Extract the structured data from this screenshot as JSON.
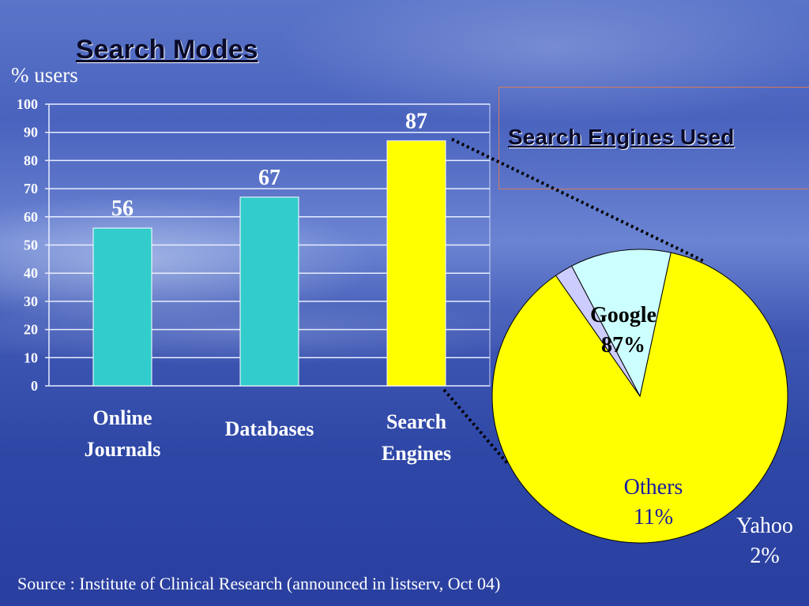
{
  "slide": {
    "title": "Search Modes",
    "unit_label": "% users",
    "inset_title": "Search Engines Used",
    "source": "Source : Institute of Clinical Research (announced in listserv, Oct 04)"
  },
  "colors": {
    "bar": "#33cccc",
    "highlight": "#ffff00",
    "others": "#ccffff",
    "yahoo": "#ccccff",
    "label_white": "#ffffff",
    "label_blue": "#1a1aa6"
  },
  "chart_data": [
    {
      "type": "bar",
      "categories": [
        "Online Journals",
        "Databases",
        "Search Engines"
      ],
      "values": [
        56,
        67,
        87
      ],
      "ylim": [
        0,
        100
      ],
      "yticks": [
        0,
        10,
        20,
        30,
        40,
        50,
        60,
        70,
        80,
        90,
        100
      ],
      "grid": true,
      "data_labels": true,
      "highlight_index": 2
    },
    {
      "type": "pie",
      "labels": [
        "Google",
        "Yahoo",
        "Others"
      ],
      "values": [
        87,
        2,
        11
      ],
      "value_labels": [
        "87%",
        "2%",
        "11%"
      ],
      "colors": [
        "#ffff00",
        "#ccccff",
        "#ccffff"
      ]
    }
  ]
}
